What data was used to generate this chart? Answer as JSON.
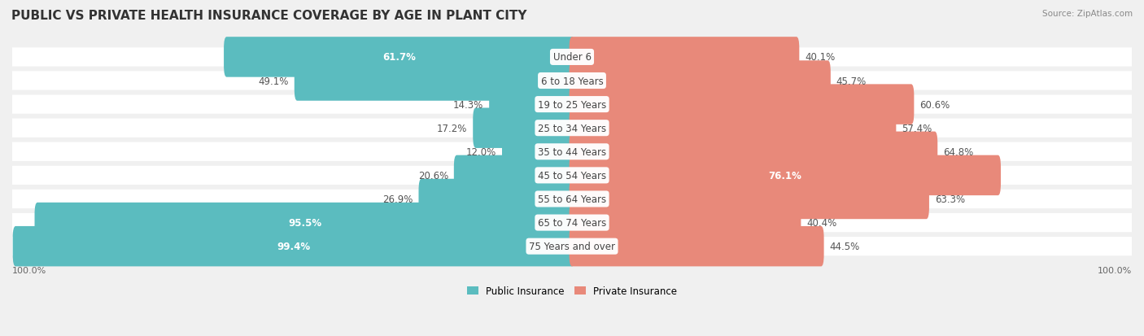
{
  "title": "PUBLIC VS PRIVATE HEALTH INSURANCE COVERAGE BY AGE IN PLANT CITY",
  "source": "Source: ZipAtlas.com",
  "categories": [
    "Under 6",
    "6 to 18 Years",
    "19 to 25 Years",
    "25 to 34 Years",
    "35 to 44 Years",
    "45 to 54 Years",
    "55 to 64 Years",
    "65 to 74 Years",
    "75 Years and over"
  ],
  "public_values": [
    61.7,
    49.1,
    14.3,
    17.2,
    12.0,
    20.6,
    26.9,
    95.5,
    99.4
  ],
  "private_values": [
    40.1,
    45.7,
    60.6,
    57.4,
    64.8,
    76.1,
    63.3,
    40.4,
    44.5
  ],
  "public_color": "#5bbcbf",
  "private_color": "#e8897a",
  "public_label": "Public Insurance",
  "private_label": "Private Insurance",
  "background_color": "#f0f0f0",
  "max_value": 100.0,
  "x_left_label": "100.0%",
  "x_right_label": "100.0%",
  "title_fontsize": 11,
  "label_fontsize": 8.5,
  "category_fontsize": 8.5
}
